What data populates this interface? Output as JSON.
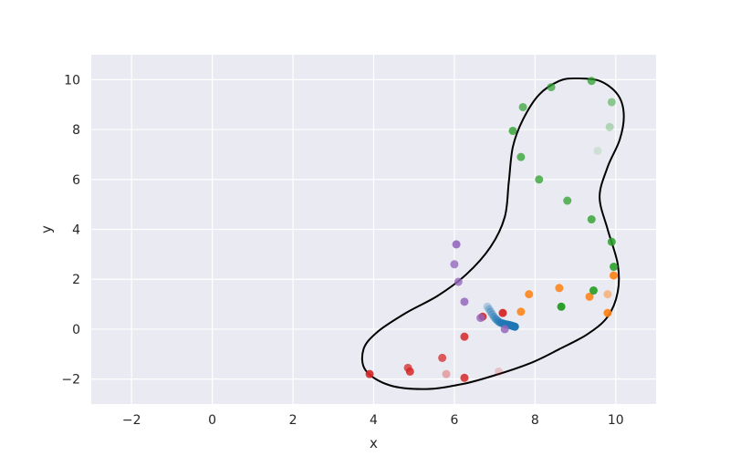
{
  "chart_data": {
    "type": "scatter",
    "title": "",
    "xlabel": "x",
    "ylabel": "y",
    "xlim": [
      -3,
      11
    ],
    "ylim": [
      -3,
      11
    ],
    "xticks": [
      -2,
      0,
      2,
      4,
      6,
      8,
      10
    ],
    "yticks": [
      -2,
      0,
      2,
      4,
      6,
      8,
      10
    ],
    "xtick_labels": [
      "−2",
      "0",
      "2",
      "4",
      "6",
      "8",
      "10"
    ],
    "ytick_labels": [
      "−2",
      "0",
      "2",
      "4",
      "6",
      "8",
      "10"
    ],
    "grid": true,
    "background": "#eaeaf2",
    "series": [
      {
        "color": "#1f77b4",
        "points": [
          [
            7.5,
            0.1
          ],
          [
            7.46,
            0.12
          ],
          [
            7.42,
            0.14
          ],
          [
            7.38,
            0.16
          ],
          [
            7.34,
            0.17
          ],
          [
            7.3,
            0.19
          ],
          [
            7.26,
            0.2
          ],
          [
            7.22,
            0.22
          ],
          [
            7.18,
            0.24
          ],
          [
            7.14,
            0.26
          ],
          [
            7.1,
            0.3
          ],
          [
            7.06,
            0.36
          ],
          [
            7.02,
            0.42
          ],
          [
            6.98,
            0.5
          ],
          [
            6.94,
            0.6
          ],
          [
            6.9,
            0.7
          ],
          [
            6.86,
            0.8
          ],
          [
            6.82,
            0.9
          ]
        ],
        "alphas": [
          1,
          0.95,
          0.9,
          0.85,
          0.8,
          0.75,
          0.72,
          0.68,
          0.64,
          0.6,
          0.56,
          0.52,
          0.48,
          0.44,
          0.4,
          0.36,
          0.32,
          0.28
        ]
      },
      {
        "color": "#ff7f0e",
        "points": [
          [
            9.8,
            0.65
          ],
          [
            9.95,
            2.15
          ],
          [
            9.35,
            1.3
          ],
          [
            8.6,
            1.65
          ],
          [
            7.65,
            0.7
          ],
          [
            7.85,
            1.4
          ],
          [
            9.8,
            1.4
          ]
        ],
        "alphas": [
          0.9,
          0.9,
          0.85,
          0.85,
          0.85,
          0.85,
          0.45
        ]
      },
      {
        "color": "#2ca02c",
        "points": [
          [
            9.4,
            9.95
          ],
          [
            8.4,
            9.7
          ],
          [
            7.7,
            8.9
          ],
          [
            9.9,
            9.1
          ],
          [
            7.45,
            7.95
          ],
          [
            9.85,
            8.1
          ],
          [
            7.65,
            6.9
          ],
          [
            9.55,
            7.15
          ],
          [
            8.1,
            6.0
          ],
          [
            8.8,
            5.15
          ],
          [
            9.4,
            4.4
          ],
          [
            9.9,
            3.5
          ],
          [
            9.95,
            2.5
          ],
          [
            9.45,
            1.55
          ],
          [
            8.65,
            0.9
          ]
        ],
        "alphas": [
          0.75,
          0.7,
          0.7,
          0.5,
          0.8,
          0.3,
          0.75,
          0.15,
          0.75,
          0.75,
          0.8,
          0.85,
          0.9,
          0.95,
          1.0
        ]
      },
      {
        "color": "#d62728",
        "points": [
          [
            3.9,
            -1.8
          ],
          [
            4.85,
            -1.55
          ],
          [
            4.9,
            -1.7
          ],
          [
            5.7,
            -1.15
          ],
          [
            5.8,
            -1.8
          ],
          [
            6.25,
            -1.95
          ],
          [
            6.25,
            -0.3
          ],
          [
            7.1,
            -1.7
          ],
          [
            6.7,
            0.5
          ],
          [
            7.2,
            0.65
          ]
        ],
        "alphas": [
          0.9,
          0.75,
          0.85,
          0.75,
          0.35,
          0.85,
          0.85,
          0.2,
          0.9,
          0.95
        ]
      },
      {
        "color": "#9467bd",
        "points": [
          [
            6.05,
            3.4
          ],
          [
            6.0,
            2.6
          ],
          [
            6.1,
            1.9
          ],
          [
            6.25,
            1.1
          ],
          [
            6.65,
            0.45
          ],
          [
            7.25,
            0.0
          ]
        ],
        "alphas": [
          0.9,
          0.8,
          0.8,
          0.85,
          0.8,
          0.85
        ]
      }
    ],
    "boundary_curve": {
      "color": "#000000",
      "points": [
        [
          9.0,
          10.05
        ],
        [
          9.6,
          9.95
        ],
        [
          10.05,
          9.4
        ],
        [
          10.2,
          8.6
        ],
        [
          10.1,
          7.6
        ],
        [
          9.8,
          6.5
        ],
        [
          9.6,
          5.3
        ],
        [
          9.8,
          4.0
        ],
        [
          10.05,
          2.6
        ],
        [
          10.05,
          1.5
        ],
        [
          9.8,
          0.5
        ],
        [
          9.3,
          -0.2
        ],
        [
          8.6,
          -0.8
        ],
        [
          7.9,
          -1.35
        ],
        [
          7.0,
          -1.85
        ],
        [
          6.2,
          -2.2
        ],
        [
          5.3,
          -2.4
        ],
        [
          4.4,
          -2.25
        ],
        [
          3.8,
          -1.65
        ],
        [
          3.75,
          -0.8
        ],
        [
          4.1,
          -0.1
        ],
        [
          4.8,
          0.65
        ],
        [
          5.6,
          1.35
        ],
        [
          6.3,
          2.2
        ],
        [
          6.9,
          3.3
        ],
        [
          7.25,
          4.5
        ],
        [
          7.35,
          5.9
        ],
        [
          7.45,
          7.3
        ],
        [
          7.7,
          8.4
        ],
        [
          8.1,
          9.4
        ],
        [
          8.6,
          9.95
        ],
        [
          9.0,
          10.05
        ]
      ]
    }
  }
}
